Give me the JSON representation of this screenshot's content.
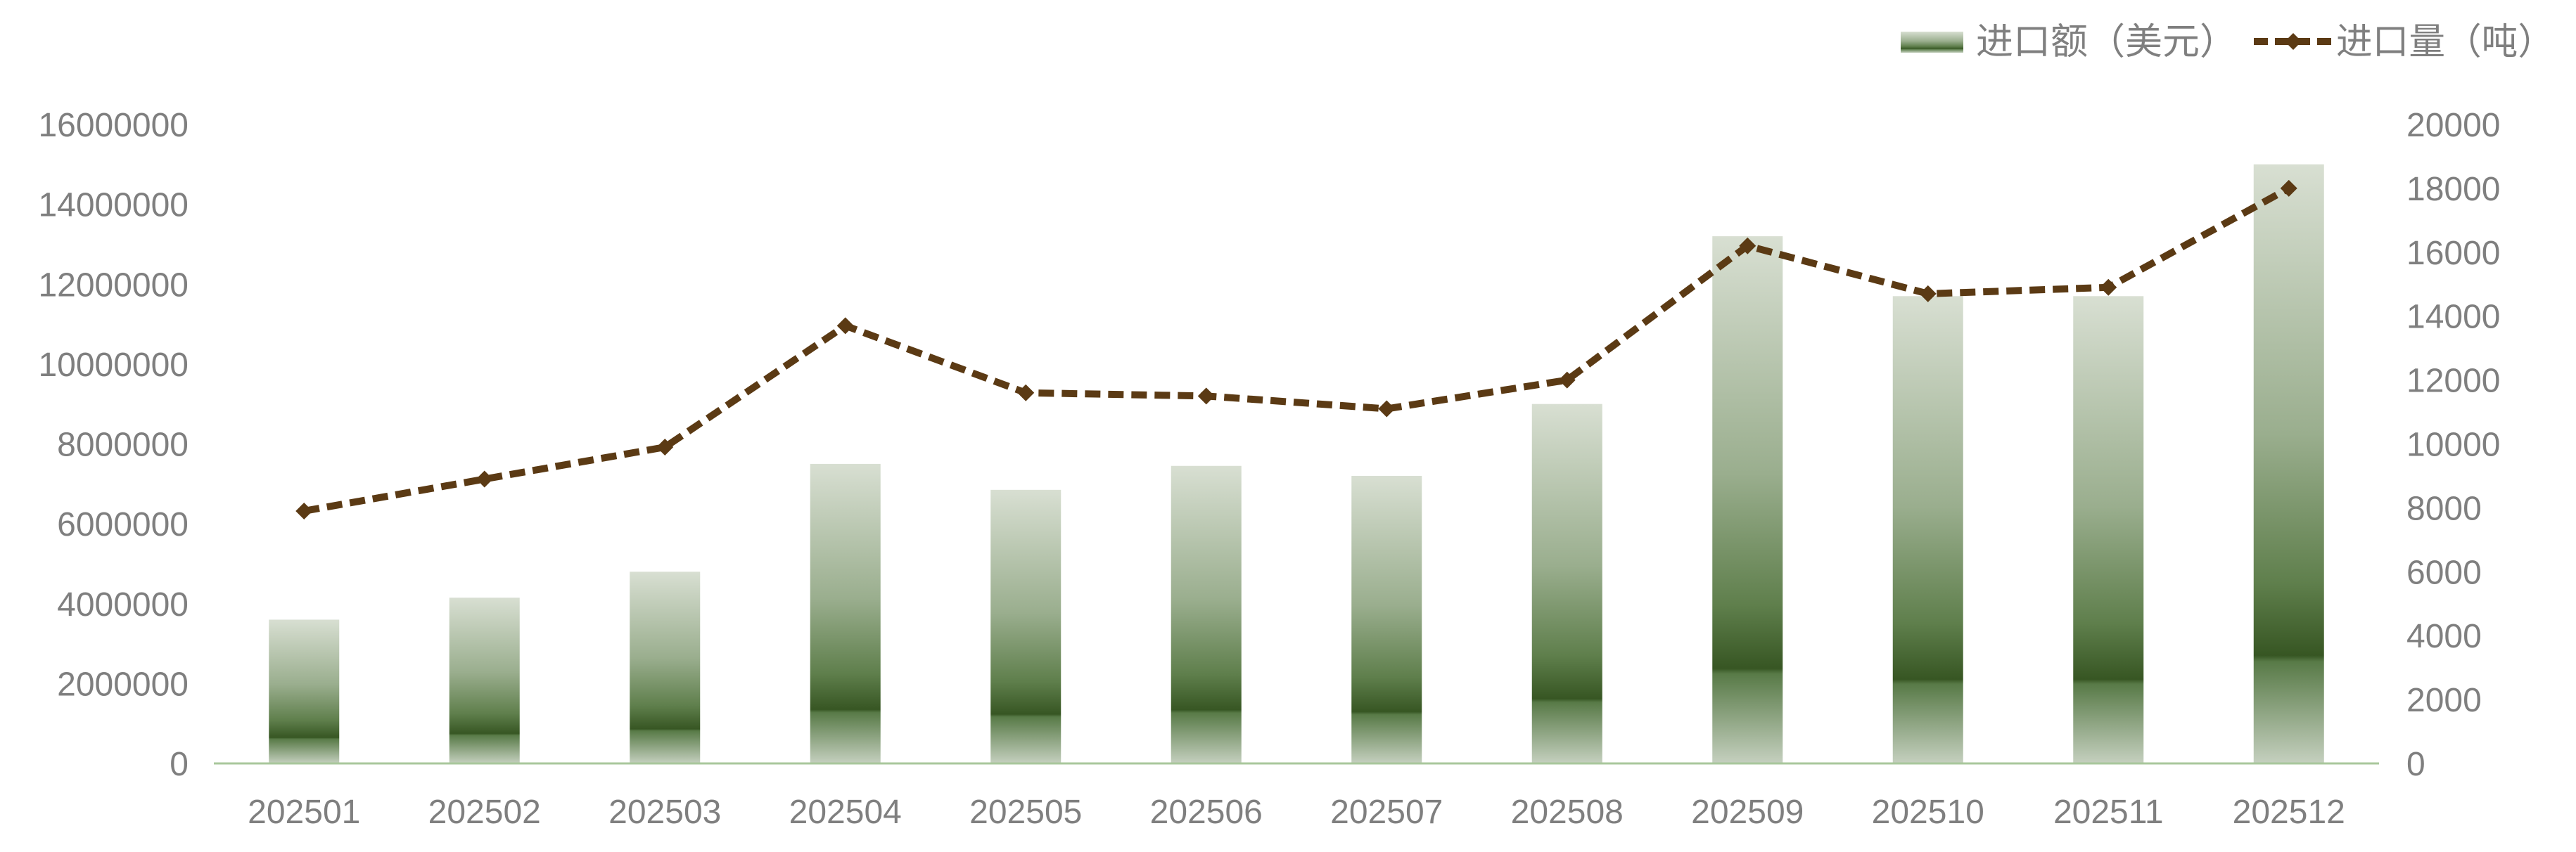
{
  "chart_data": {
    "type": "bar",
    "categories": [
      "202501",
      "202502",
      "202503",
      "202504",
      "202505",
      "202506",
      "202507",
      "202508",
      "202509",
      "202510",
      "202511",
      "202512"
    ],
    "series": [
      {
        "name": "进口额（美元）",
        "type": "bar",
        "axis": "left",
        "values": [
          3600000,
          4150000,
          4800000,
          7500000,
          6850000,
          7450000,
          7200000,
          9000000,
          13200000,
          11700000,
          11700000,
          15000000
        ]
      },
      {
        "name": "进口量（吨）",
        "type": "line",
        "axis": "right",
        "marker": "diamond",
        "line_style": "dashed",
        "values": [
          7900,
          8900,
          9900,
          13700,
          11600,
          11500,
          11100,
          12000,
          16200,
          14700,
          14900,
          18000
        ]
      }
    ],
    "y_axis": {
      "min": 0,
      "max": 16000000,
      "ticks": [
        0,
        2000000,
        4000000,
        6000000,
        8000000,
        10000000,
        12000000,
        14000000,
        16000000
      ]
    },
    "y2_axis": {
      "min": 0,
      "max": 20000,
      "ticks": [
        0,
        2000,
        4000,
        6000,
        8000,
        10000,
        12000,
        14000,
        16000,
        18000,
        20000
      ]
    },
    "grid": false,
    "legend": "top-right",
    "colors": {
      "bar_gradient": [
        "#d8dfd2",
        "#9aae8e",
        "#5f7f4c",
        "#375623",
        "#587a47",
        "#c5d0bf"
      ],
      "line": "#5b3a14",
      "axis_line": "#a9c79c",
      "tick_text": "#7f7f7f",
      "legend_text": "#7f7f7f"
    }
  }
}
